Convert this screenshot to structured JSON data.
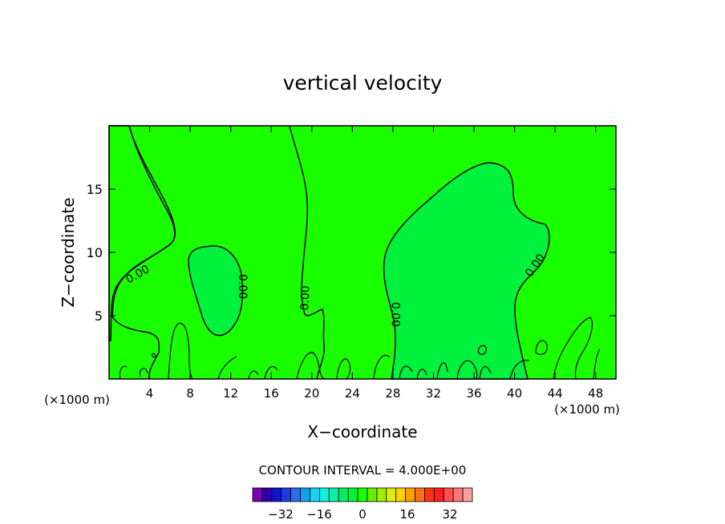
{
  "chart_data": {
    "type": "contour",
    "title": "vertical velocity",
    "xlabel": "X−coordinate",
    "ylabel": "Z−coordinate",
    "x_unit_left": "(×1000 m)",
    "x_unit_right": "(×1000 m)",
    "x_ticks": [
      4,
      8,
      12,
      16,
      20,
      24,
      28,
      32,
      36,
      40,
      44,
      48
    ],
    "y_ticks": [
      5,
      10,
      15
    ],
    "xlim": [
      0,
      50
    ],
    "ylim": [
      0,
      20
    ],
    "contour_level": "0.00",
    "contour_labels": [
      {
        "text": "0.00",
        "x": 2.8,
        "y": 8.3,
        "angle": -30
      },
      {
        "text": "0.00",
        "x": 13.2,
        "y": 7.3,
        "angle": 90
      },
      {
        "text": "0.00",
        "x": 19.3,
        "y": 6.4,
        "angle": -88
      },
      {
        "text": "0.00",
        "x": 28.3,
        "y": 5.1,
        "angle": 90
      },
      {
        "text": "0.00",
        "x": 42.0,
        "y": 9.0,
        "angle": -55
      }
    ],
    "fields": {
      "positive_regions_color": "#1aff00",
      "near_zero_color": "#00f23c"
    },
    "contour_interval_text": "CONTOUR INTERVAL = 4.000E+00",
    "colorbar": {
      "colors": [
        "#7b00b4",
        "#2d00a8",
        "#1414c8",
        "#1a3ce6",
        "#2a6ef0",
        "#14a0f0",
        "#14d2f0",
        "#10f0dc",
        "#10f0a8",
        "#00f064",
        "#00f23c",
        "#1aff00",
        "#64f000",
        "#a0f000",
        "#dcf000",
        "#ffd200",
        "#ffa000",
        "#ff6e14",
        "#ff3214",
        "#ff1e1e",
        "#ff5050",
        "#ff7878",
        "#ff9c9c"
      ],
      "tick_labels": [
        "−32",
        "−16",
        "0",
        "16",
        "32"
      ]
    }
  }
}
